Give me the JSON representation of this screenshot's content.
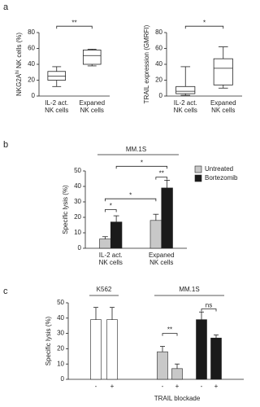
{
  "panel_labels": [
    "a",
    "b",
    "c"
  ],
  "chart_data": [
    {
      "type": "box",
      "ylabel": [
        "NKG2A",
        "hi",
        " NK cells (%)"
      ],
      "categories": [
        [
          "IL-2 act.",
          "NK cells"
        ],
        [
          "Expaned",
          "NK cells"
        ]
      ],
      "stats": {
        "min": [
          12,
          38
        ],
        "q1": [
          20,
          40
        ],
        "median": [
          25,
          51
        ],
        "q3": [
          31,
          58
        ],
        "max": [
          37,
          59
        ]
      },
      "ylim": [
        0,
        80
      ],
      "yticks": [
        0,
        20,
        40,
        60,
        80
      ],
      "significance": [
        "**"
      ]
    },
    {
      "type": "box",
      "ylabel": [
        "TRAIL expression (GMRFI)"
      ],
      "categories": [
        [
          "IL-2 act.",
          "NK cells"
        ],
        [
          "Expaned",
          "NK cells"
        ]
      ],
      "stats": {
        "min": [
          1,
          10
        ],
        "q1": [
          3,
          14
        ],
        "median": [
          6,
          35
        ],
        "q3": [
          12,
          47
        ],
        "max": [
          37,
          62
        ]
      },
      "ylim": [
        0,
        80
      ],
      "yticks": [
        0,
        20,
        40,
        60,
        80
      ],
      "significance": [
        "*"
      ]
    },
    {
      "type": "bar",
      "title": "MM.1S",
      "ylabel": [
        "Specific lysis (%)"
      ],
      "categories": [
        [
          "IL-2 act.",
          "NK cells"
        ],
        [
          "Expaned",
          "NK cells"
        ]
      ],
      "series": [
        {
          "name": "Untreated",
          "color": "#c8c8c8",
          "values": [
            6,
            18
          ],
          "errors": [
            1.5,
            4
          ]
        },
        {
          "name": "Bortezomib",
          "color": "#1a1a1a",
          "values": [
            17,
            39
          ],
          "errors": [
            4,
            5
          ]
        }
      ],
      "ylim": [
        0,
        50
      ],
      "yticks": [
        0,
        10,
        20,
        30,
        40,
        50
      ],
      "legend": "right",
      "significance": [
        "*",
        "*",
        "**",
        "*"
      ]
    },
    {
      "type": "grouped-bar",
      "ylabel": [
        "Specific lysis (%)"
      ],
      "xlabel": "TRAIL blockade",
      "groups": [
        "K562",
        "MM.1S"
      ],
      "categories": [
        "-",
        "+",
        "-",
        "+",
        "-",
        "+"
      ],
      "values": [
        39,
        39,
        18,
        7,
        39,
        27
      ],
      "errors": [
        8,
        8,
        3.5,
        3,
        5,
        2
      ],
      "colors": [
        "#ffffff",
        "#ffffff",
        "#c8c8c8",
        "#c8c8c8",
        "#1a1a1a",
        "#1a1a1a"
      ],
      "ylim": [
        0,
        50
      ],
      "yticks": [
        0,
        10,
        20,
        30,
        40,
        50
      ],
      "significance": [
        "**",
        "ns"
      ]
    }
  ]
}
